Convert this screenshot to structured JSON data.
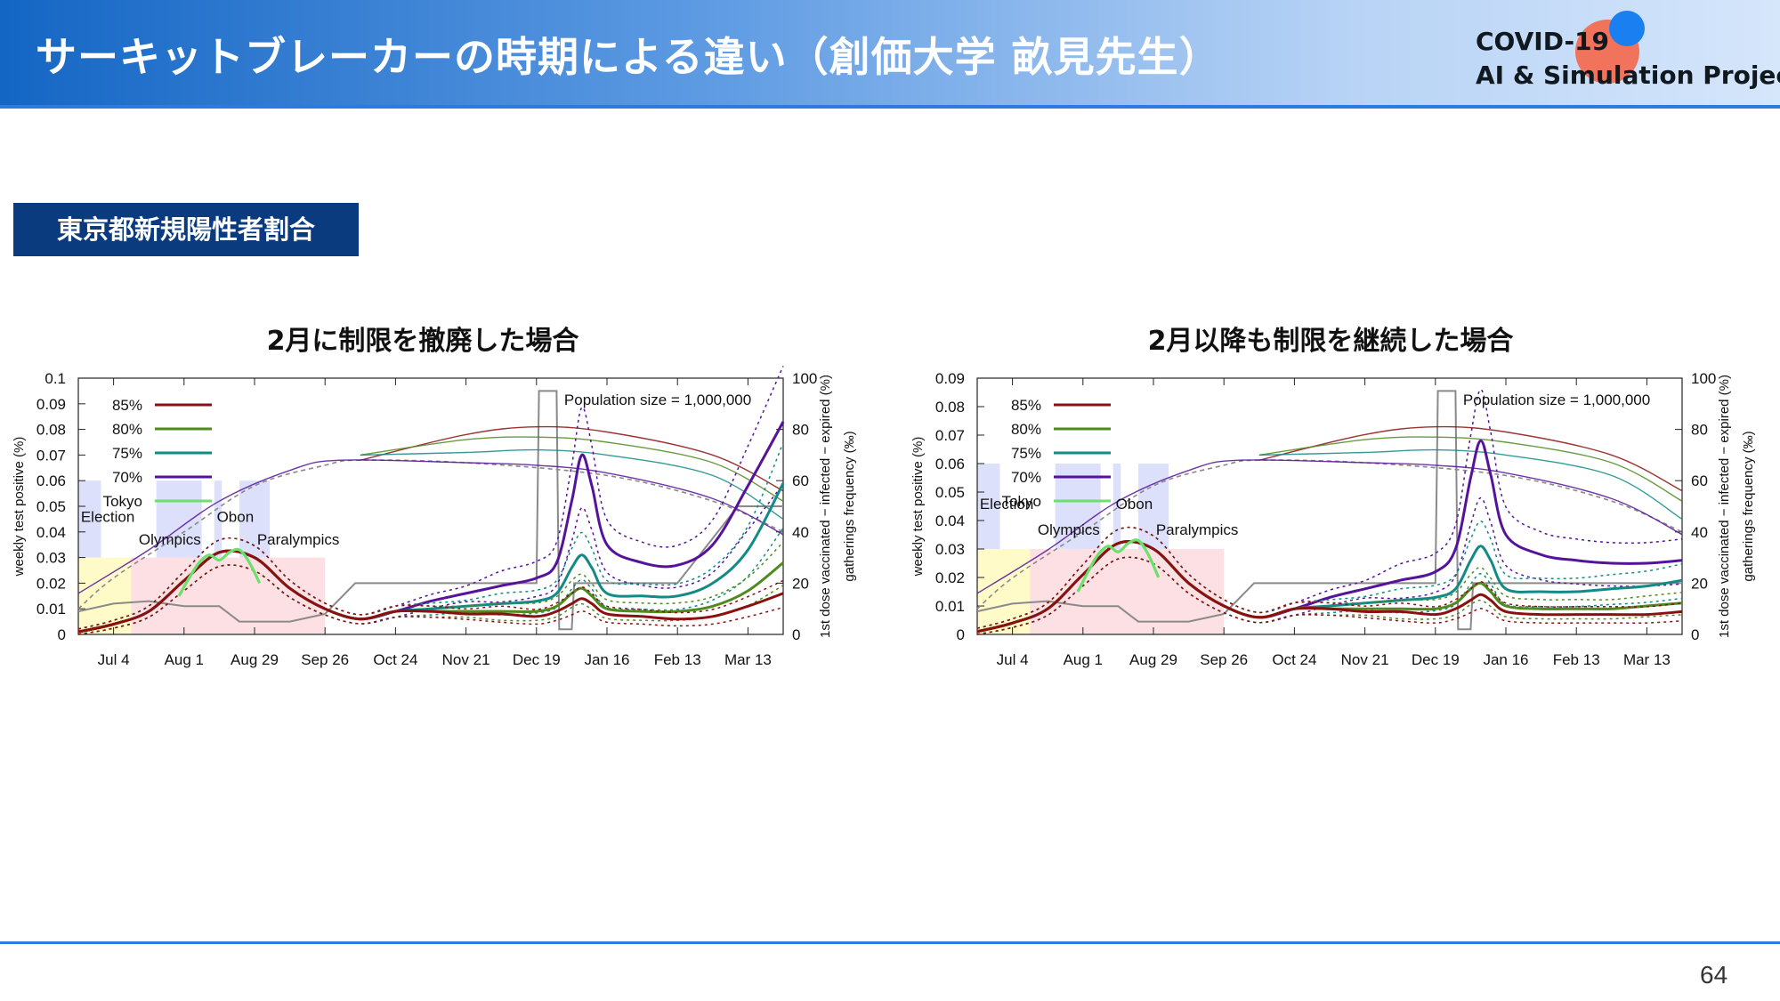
{
  "header": {
    "title": "サーキットブレーカーの時期による違い（創価大学 畝見先生）"
  },
  "logo": {
    "line1": "COVID-19",
    "line2": "AI & Simulation Project"
  },
  "section": {
    "label": "東京都新規陽性者割合"
  },
  "page_number": "64",
  "colors": {
    "header_start": "#1466c4",
    "section_bg": "#0b3b7f",
    "s85": "#8b1010",
    "s80": "#4e8a1e",
    "s75": "#128a86",
    "s70": "#55129a",
    "tokyo": "#6ce06c",
    "gray": "#8a8a8a",
    "band_blue": "#dde0fb",
    "band_yellow": "#fefbc9",
    "band_pink": "#fde0e3"
  },
  "chart_data": [
    {
      "type": "line",
      "title": "2月に制限を撤廃した場合",
      "ylabel": "weekly test positive (%)",
      "y2label": [
        "1st dose vaccinated − infected − expired (%)",
        "gatherings frequency (‰)"
      ],
      "ylim": [
        0,
        0.1
      ],
      "yticks": [
        "0",
        "0.01",
        "0.02",
        "0.03",
        "0.04",
        "0.05",
        "0.06",
        "0.07",
        "0.08",
        "0.09",
        "0.1"
      ],
      "y2lim": [
        0,
        100
      ],
      "y2ticks": [
        "0",
        "20",
        "40",
        "60",
        "80",
        "100"
      ],
      "xlim": [
        -14,
        266
      ],
      "xticks": [
        {
          "v": 0,
          "label": "Jul 4"
        },
        {
          "v": 28,
          "label": "Aug 1"
        },
        {
          "v": 56,
          "label": "Aug 29"
        },
        {
          "v": 84,
          "label": "Sep 26"
        },
        {
          "v": 112,
          "label": "Oct 24"
        },
        {
          "v": 140,
          "label": "Nov 21"
        },
        {
          "v": 168,
          "label": "Dec 19"
        },
        {
          "v": 196,
          "label": "Jan 16"
        },
        {
          "v": 224,
          "label": "Feb 13"
        },
        {
          "v": 252,
          "label": "Mar 13"
        }
      ],
      "annotation": "Population size = 1,000,000",
      "events": [
        "Election",
        "Olympics",
        "Obon",
        "Paralympics"
      ],
      "legend": {
        "placement": "top-left",
        "entries": [
          "85%",
          "80%",
          "75%",
          "70%",
          "Tokyo"
        ]
      },
      "series": [
        {
          "name": "70%",
          "x": [
            -14,
            0,
            14,
            28,
            42,
            56,
            70,
            84,
            98,
            112,
            126,
            140,
            154,
            168,
            176,
            182,
            186,
            190,
            196,
            210,
            224,
            238,
            252,
            266
          ],
          "y": [
            0.001,
            0.004,
            0.009,
            0.021,
            0.032,
            0.03,
            0.018,
            0.01,
            0.006,
            0.009,
            0.013,
            0.016,
            0.019,
            0.022,
            0.028,
            0.052,
            0.07,
            0.058,
            0.035,
            0.028,
            0.027,
            0.035,
            0.058,
            0.083
          ]
        },
        {
          "name": "75%",
          "x": [
            -14,
            0,
            14,
            28,
            42,
            56,
            70,
            84,
            98,
            112,
            126,
            140,
            154,
            168,
            176,
            182,
            186,
            190,
            196,
            210,
            224,
            238,
            252,
            266
          ],
          "y": [
            0.001,
            0.004,
            0.009,
            0.021,
            0.032,
            0.03,
            0.018,
            0.01,
            0.006,
            0.009,
            0.01,
            0.011,
            0.012,
            0.013,
            0.016,
            0.026,
            0.031,
            0.026,
            0.016,
            0.015,
            0.015,
            0.02,
            0.033,
            0.059
          ]
        },
        {
          "name": "80%",
          "x": [
            -14,
            0,
            14,
            28,
            42,
            56,
            70,
            84,
            98,
            112,
            126,
            140,
            154,
            168,
            176,
            182,
            186,
            190,
            196,
            210,
            224,
            238,
            252,
            266
          ],
          "y": [
            0.001,
            0.004,
            0.009,
            0.021,
            0.032,
            0.03,
            0.018,
            0.01,
            0.006,
            0.009,
            0.009,
            0.009,
            0.009,
            0.009,
            0.011,
            0.016,
            0.018,
            0.015,
            0.01,
            0.009,
            0.009,
            0.011,
            0.017,
            0.028
          ]
        },
        {
          "name": "85%",
          "x": [
            -14,
            0,
            14,
            28,
            42,
            56,
            70,
            84,
            98,
            112,
            126,
            140,
            154,
            168,
            176,
            182,
            186,
            190,
            196,
            210,
            224,
            238,
            252,
            266
          ],
          "y": [
            0.001,
            0.004,
            0.009,
            0.021,
            0.032,
            0.03,
            0.018,
            0.01,
            0.006,
            0.009,
            0.009,
            0.008,
            0.008,
            0.007,
            0.009,
            0.012,
            0.014,
            0.012,
            0.008,
            0.007,
            0.006,
            0.007,
            0.011,
            0.016
          ]
        },
        {
          "name": "Tokyo",
          "x": [
            26,
            30,
            34,
            38,
            42,
            46,
            50,
            54,
            58
          ],
          "y": [
            0.015,
            0.022,
            0.028,
            0.031,
            0.029,
            0.032,
            0.033,
            0.028,
            0.02
          ]
        }
      ]
    },
    {
      "type": "line",
      "title": "2月以降も制限を継続した場合",
      "ylabel": "weekly test positive (%)",
      "y2label": [
        "1st dose vaccinated − infected − expired (%)",
        "gatherings frequency (‰)"
      ],
      "ylim": [
        0,
        0.09
      ],
      "yticks": [
        "0",
        "0.01",
        "0.02",
        "0.03",
        "0.04",
        "0.05",
        "0.06",
        "0.07",
        "0.08",
        "0.09"
      ],
      "y2lim": [
        0,
        100
      ],
      "y2ticks": [
        "0",
        "20",
        "40",
        "60",
        "80",
        "100"
      ],
      "xlim": [
        -14,
        266
      ],
      "xticks": [
        {
          "v": 0,
          "label": "Jul 4"
        },
        {
          "v": 28,
          "label": "Aug 1"
        },
        {
          "v": 56,
          "label": "Aug 29"
        },
        {
          "v": 84,
          "label": "Sep 26"
        },
        {
          "v": 112,
          "label": "Oct 24"
        },
        {
          "v": 140,
          "label": "Nov 21"
        },
        {
          "v": 168,
          "label": "Dec 19"
        },
        {
          "v": 196,
          "label": "Jan 16"
        },
        {
          "v": 224,
          "label": "Feb 13"
        },
        {
          "v": 252,
          "label": "Mar 13"
        }
      ],
      "annotation": "Population size = 1,000,000",
      "events": [
        "Election",
        "Olympics",
        "Obon",
        "Paralympics"
      ],
      "legend": {
        "placement": "top-left",
        "entries": [
          "85%",
          "80%",
          "75%",
          "70%",
          "Tokyo"
        ]
      },
      "series": [
        {
          "name": "70%",
          "x": [
            -14,
            0,
            14,
            28,
            42,
            56,
            70,
            84,
            98,
            112,
            126,
            140,
            154,
            168,
            176,
            182,
            186,
            190,
            196,
            210,
            224,
            238,
            252,
            266
          ],
          "y": [
            0.001,
            0.004,
            0.009,
            0.021,
            0.032,
            0.03,
            0.018,
            0.01,
            0.006,
            0.009,
            0.013,
            0.016,
            0.019,
            0.022,
            0.03,
            0.055,
            0.068,
            0.056,
            0.035,
            0.028,
            0.026,
            0.025,
            0.025,
            0.026
          ]
        },
        {
          "name": "75%",
          "x": [
            -14,
            0,
            14,
            28,
            42,
            56,
            70,
            84,
            98,
            112,
            126,
            140,
            154,
            168,
            176,
            182,
            186,
            190,
            196,
            210,
            224,
            238,
            252,
            266
          ],
          "y": [
            0.001,
            0.004,
            0.009,
            0.021,
            0.032,
            0.03,
            0.018,
            0.01,
            0.006,
            0.009,
            0.01,
            0.011,
            0.012,
            0.013,
            0.016,
            0.026,
            0.031,
            0.026,
            0.016,
            0.015,
            0.015,
            0.016,
            0.017,
            0.019
          ]
        },
        {
          "name": "80%",
          "x": [
            -14,
            0,
            14,
            28,
            42,
            56,
            70,
            84,
            98,
            112,
            126,
            140,
            154,
            168,
            176,
            182,
            186,
            190,
            196,
            210,
            224,
            238,
            252,
            266
          ],
          "y": [
            0.001,
            0.004,
            0.009,
            0.021,
            0.032,
            0.03,
            0.018,
            0.01,
            0.006,
            0.009,
            0.009,
            0.009,
            0.009,
            0.009,
            0.011,
            0.016,
            0.018,
            0.015,
            0.01,
            0.009,
            0.009,
            0.009,
            0.01,
            0.011
          ]
        },
        {
          "name": "85%",
          "x": [
            -14,
            0,
            14,
            28,
            42,
            56,
            70,
            84,
            98,
            112,
            126,
            140,
            154,
            168,
            176,
            182,
            186,
            190,
            196,
            210,
            224,
            238,
            252,
            266
          ],
          "y": [
            0.001,
            0.004,
            0.009,
            0.021,
            0.032,
            0.03,
            0.018,
            0.01,
            0.006,
            0.009,
            0.009,
            0.008,
            0.008,
            0.007,
            0.009,
            0.012,
            0.014,
            0.012,
            0.008,
            0.007,
            0.007,
            0.007,
            0.007,
            0.008
          ]
        },
        {
          "name": "Tokyo",
          "x": [
            26,
            30,
            34,
            38,
            42,
            46,
            50,
            54,
            58
          ],
          "y": [
            0.015,
            0.022,
            0.028,
            0.031,
            0.029,
            0.032,
            0.033,
            0.028,
            0.02
          ]
        }
      ]
    }
  ]
}
